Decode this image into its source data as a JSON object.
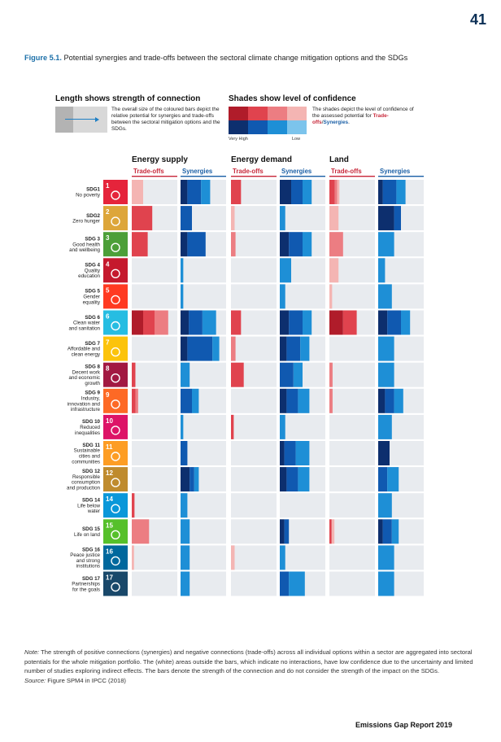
{
  "page_number": "41",
  "figure": {
    "label": "Figure 5.1.",
    "caption": "Potential synergies and trade-offs between the sectoral climate change mitigation options and the SDGs"
  },
  "legend": {
    "length_title": "Length shows strength of connection",
    "length_text": "The overall size of the coloured bars depict the relative potential for synergies and trade-offs between the sectoral mitigation options and the SDGs.",
    "shade_title": "Shades show level of confidence",
    "shade_text_pre": "The shades depict the level of confidence of the assessed potential for",
    "shade_text_tradeoffs": "Trade-offs",
    "shade_text_synergies": "Synergies",
    "very_high": "Very High",
    "low": "Low",
    "red_shades": [
      "#b01c2a",
      "#e0434e",
      "#ec7d82",
      "#f4b5b3"
    ],
    "blue_shades": [
      "#0d2f6e",
      "#1059b0",
      "#1e8fd6",
      "#7cc4ec"
    ]
  },
  "chart_data": {
    "type": "bar",
    "sectors": [
      "Energy supply",
      "Energy demand",
      "Land"
    ],
    "subcolumns": [
      "Trade-offs",
      "Synergies"
    ],
    "shade_levels": [
      "Very High",
      "High",
      "Medium",
      "Low"
    ],
    "value_unit": "relative strength (0-1), segments listed from very high to low confidence",
    "rows": [
      {
        "code": "SDG1",
        "name": "No poverty",
        "color": "#e5243b",
        "values": [
          [
            [
              0,
              0,
              0,
              0.25
            ]
          ],
          [
            [
              0.15,
              0.3,
              0.2,
              0
            ]
          ],
          [
            [
              0,
              0.22,
              0,
              0
            ]
          ],
          [
            [
              0.25,
              0.25,
              0.2,
              0
            ]
          ],
          [
            [
              0,
              0.12,
              0.05,
              0.05
            ]
          ],
          [
            [
              0.1,
              0.3,
              0.2,
              0
            ]
          ]
        ]
      },
      {
        "code": "SDG2",
        "name": "Zero hunger",
        "color": "#dda63a",
        "values": [
          [
            [
              0,
              0.45,
              0,
              0
            ]
          ],
          [
            [
              0,
              0.25,
              0,
              0
            ]
          ],
          [
            [
              0,
              0,
              0,
              0.08
            ]
          ],
          [
            [
              0,
              0,
              0.12,
              0
            ]
          ],
          [
            [
              0,
              0,
              0,
              0.2
            ]
          ],
          [
            [
              0.35,
              0.15,
              0,
              0
            ]
          ]
        ]
      },
      {
        "code": "SDG 3",
        "name": "Good health and wellbeing",
        "color": "#4c9f38",
        "values": [
          [
            [
              0,
              0.35,
              0,
              0
            ]
          ],
          [
            [
              0.15,
              0.4,
              0,
              0
            ]
          ],
          [
            [
              0,
              0,
              0.1,
              0
            ]
          ],
          [
            [
              0.2,
              0.3,
              0.2,
              0
            ]
          ],
          [
            [
              0,
              0,
              0.3,
              0
            ]
          ],
          [
            [
              0,
              0,
              0.35,
              0
            ]
          ]
        ]
      },
      {
        "code": "SDG 4",
        "name": "Quality education",
        "color": "#c5192d",
        "values": [
          [
            [
              0,
              0,
              0,
              0
            ]
          ],
          [
            [
              0,
              0,
              0.06,
              0
            ]
          ],
          [
            [
              0,
              0,
              0,
              0
            ]
          ],
          [
            [
              0,
              0,
              0.25,
              0
            ]
          ],
          [
            [
              0,
              0,
              0,
              0.2
            ]
          ],
          [
            [
              0,
              0,
              0.15,
              0
            ]
          ]
        ]
      },
      {
        "code": "SDG 5",
        "name": "Gender equality",
        "color": "#ff3a21",
        "values": [
          [
            [
              0,
              0,
              0,
              0
            ]
          ],
          [
            [
              0,
              0,
              0.06,
              0
            ]
          ],
          [
            [
              0,
              0,
              0,
              0
            ]
          ],
          [
            [
              0,
              0,
              0.12,
              0
            ]
          ],
          [
            [
              0,
              0,
              0,
              0.06
            ]
          ],
          [
            [
              0,
              0,
              0.3,
              0
            ]
          ]
        ]
      },
      {
        "code": "SDG 6",
        "name": "Clean water and sanitation",
        "color": "#26bde2",
        "values": [
          [
            [
              0.25,
              0.25,
              0.3,
              0
            ]
          ],
          [
            [
              0.18,
              0.3,
              0.3,
              0
            ]
          ],
          [
            [
              0,
              0.22,
              0,
              0
            ]
          ],
          [
            [
              0.2,
              0.3,
              0.2,
              0
            ]
          ],
          [
            [
              0.3,
              0.3,
              0,
              0
            ]
          ],
          [
            [
              0.2,
              0.3,
              0.2,
              0
            ]
          ]
        ]
      },
      {
        "code": "SDG 7",
        "name": "Affordable and clean energy",
        "color": "#fcc30b",
        "values": [
          [
            [
              0,
              0,
              0,
              0
            ]
          ],
          [
            [
              0.15,
              0.55,
              0.15,
              0
            ]
          ],
          [
            [
              0,
              0,
              0.1,
              0
            ]
          ],
          [
            [
              0.15,
              0.3,
              0.2,
              0
            ]
          ],
          [
            [
              0,
              0,
              0,
              0
            ]
          ],
          [
            [
              0,
              0,
              0.35,
              0
            ]
          ]
        ]
      },
      {
        "code": "SDG 8",
        "name": "Decent work and economic growth",
        "color": "#a21942",
        "values": [
          [
            [
              0,
              0.08,
              0,
              0
            ]
          ],
          [
            [
              0,
              0,
              0.2,
              0
            ]
          ],
          [
            [
              0,
              0.28,
              0,
              0
            ]
          ],
          [
            [
              0,
              0.3,
              0.2,
              0
            ]
          ],
          [
            [
              0,
              0,
              0.07,
              0
            ]
          ],
          [
            [
              0,
              0,
              0.35,
              0
            ]
          ]
        ]
      },
      {
        "code": "SDG 9",
        "name": "Industry, innovation and infrastructure",
        "color": "#fd6925",
        "values": [
          [
            [
              0,
              0.08,
              0.06,
              0
            ]
          ],
          [
            [
              0,
              0.25,
              0.15,
              0
            ]
          ],
          [
            [
              0,
              0,
              0,
              0
            ]
          ],
          [
            [
              0.15,
              0.25,
              0.25,
              0
            ]
          ],
          [
            [
              0,
              0,
              0.07,
              0
            ]
          ],
          [
            [
              0.15,
              0.2,
              0.2,
              0
            ]
          ]
        ]
      },
      {
        "code": "SDG 10",
        "name": "Reduced inequalities",
        "color": "#dd1367",
        "values": [
          [
            [
              0,
              0,
              0,
              0
            ]
          ],
          [
            [
              0,
              0,
              0.06,
              0
            ]
          ],
          [
            [
              0,
              0.06,
              0,
              0
            ]
          ],
          [
            [
              0,
              0,
              0.12,
              0
            ]
          ],
          [
            [
              0,
              0,
              0,
              0
            ]
          ],
          [
            [
              0,
              0,
              0.3,
              0
            ]
          ]
        ]
      },
      {
        "code": "SDG 11",
        "name": "Sustainable cities and communities",
        "color": "#fd9d24",
        "values": [
          [
            [
              0,
              0,
              0,
              0
            ]
          ],
          [
            [
              0,
              0.15,
              0,
              0
            ]
          ],
          [
            [
              0,
              0,
              0,
              0
            ]
          ],
          [
            [
              0.1,
              0.25,
              0.3,
              0
            ]
          ],
          [
            [
              0,
              0,
              0,
              0
            ]
          ],
          [
            [
              0.25,
              0,
              0,
              0
            ]
          ]
        ]
      },
      {
        "code": "SDG 12",
        "name": "Responsible consumption and production",
        "color": "#bf8b2e",
        "values": [
          [
            [
              0,
              0,
              0,
              0
            ]
          ],
          [
            [
              0.2,
              0.1,
              0.1,
              0
            ]
          ],
          [
            [
              0,
              0,
              0,
              0
            ]
          ],
          [
            [
              0.15,
              0.25,
              0.25,
              0
            ]
          ],
          [
            [
              0,
              0,
              0,
              0
            ]
          ],
          [
            [
              0,
              0.2,
              0.25,
              0
            ]
          ]
        ]
      },
      {
        "code": "SDG 14",
        "name": "Life below water",
        "color": "#0a97d9",
        "values": [
          [
            [
              0,
              0.06,
              0,
              0
            ]
          ],
          [
            [
              0,
              0,
              0.15,
              0
            ]
          ],
          [
            [
              0,
              0,
              0,
              0
            ]
          ],
          [
            [
              0,
              0,
              0,
              0
            ]
          ],
          [
            [
              0,
              0,
              0,
              0
            ]
          ],
          [
            [
              0,
              0,
              0.3,
              0
            ]
          ]
        ]
      },
      {
        "code": "SDG 15",
        "name": "Life on land",
        "color": "#56c02b",
        "values": [
          [
            [
              0,
              0,
              0.38,
              0
            ]
          ],
          [
            [
              0,
              0,
              0.2,
              0
            ]
          ],
          [
            [
              0,
              0,
              0,
              0
            ]
          ],
          [
            [
              0.1,
              0.1,
              0,
              0
            ]
          ],
          [
            [
              0,
              0.05,
              0,
              0.06
            ]
          ],
          [
            [
              0.1,
              0.2,
              0.15,
              0
            ]
          ]
        ]
      },
      {
        "code": "SDG 16",
        "name": "Peace justice and strong institutions",
        "color": "#00689d",
        "values": [
          [
            [
              0,
              0,
              0,
              0.05
            ]
          ],
          [
            [
              0,
              0,
              0.2,
              0
            ]
          ],
          [
            [
              0,
              0,
              0,
              0.08
            ]
          ],
          [
            [
              0,
              0,
              0.12,
              0
            ]
          ],
          [
            [
              0,
              0,
              0,
              0
            ]
          ],
          [
            [
              0,
              0,
              0.35,
              0
            ]
          ]
        ]
      },
      {
        "code": "SDG 17",
        "name": "Partnerships for the goals",
        "color": "#19486a",
        "values": [
          [
            [
              0,
              0,
              0,
              0
            ]
          ],
          [
            [
              0,
              0,
              0.2,
              0
            ]
          ],
          [
            [
              0,
              0,
              0,
              0
            ]
          ],
          [
            [
              0,
              0.2,
              0.35,
              0
            ]
          ],
          [
            [
              0,
              0,
              0,
              0
            ]
          ],
          [
            [
              0,
              0,
              0.35,
              0
            ]
          ]
        ]
      }
    ]
  },
  "note": {
    "label": "Note:",
    "text": "The strength of positive connections (synergies) and negative connections (trade-offs) across all individual options within a sector are aggregated into sectoral potentials for the whole mitigation portfolio. The (white) areas outside the bars, which indicate no interactions, have low confidence due to the uncertainty and limited number of studies exploring indirect effects. The bars denote the strength of the connection and do not consider the strength of the impact on the SDGs.",
    "source_label": "Source:",
    "source_text": "Figure SPM4 in IPCC (2018)"
  },
  "footer": "Emissions Gap Report 2019"
}
